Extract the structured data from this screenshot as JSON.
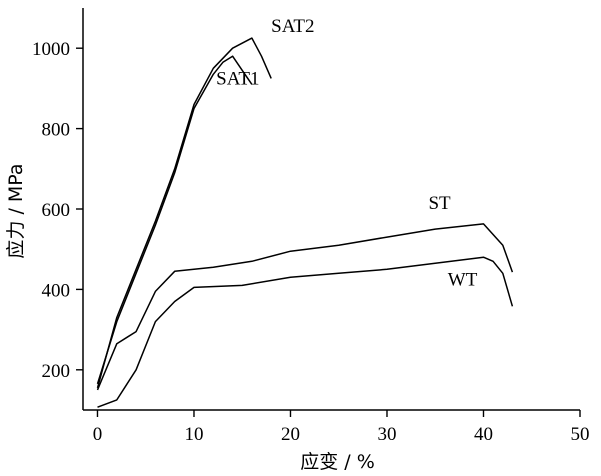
{
  "chart_data": {
    "type": "line",
    "xlabel": "应变 / %",
    "ylabel": "应力 / MPa",
    "xlim": [
      -1.5,
      50
    ],
    "ylim": [
      100,
      1100
    ],
    "xticks": [
      0,
      10,
      20,
      30,
      40,
      50
    ],
    "yticks": [
      200,
      400,
      600,
      800,
      1000
    ],
    "grid": false,
    "legend": "none (series labelled directly on the curves)",
    "series": [
      {
        "name": "SAT2",
        "x": [
          0,
          2,
          4,
          6,
          8,
          10,
          12,
          14,
          16,
          17,
          18
        ],
        "y": [
          155,
          330,
          450,
          570,
          700,
          860,
          950,
          1000,
          1025,
          980,
          925
        ]
      },
      {
        "name": "SAT1",
        "x": [
          0,
          2,
          4,
          6,
          8,
          10,
          12,
          13,
          14,
          15,
          16
        ],
        "y": [
          165,
          320,
          440,
          560,
          690,
          850,
          935,
          965,
          980,
          945,
          910
        ]
      },
      {
        "name": "ST",
        "x": [
          0,
          2,
          4,
          6,
          8,
          10,
          12,
          16,
          20,
          25,
          30,
          35,
          40,
          42,
          43
        ],
        "y": [
          150,
          265,
          295,
          395,
          445,
          450,
          455,
          470,
          495,
          510,
          530,
          550,
          563,
          510,
          443
        ]
      },
      {
        "name": "WT",
        "x": [
          0,
          2,
          4,
          6,
          8,
          10,
          15,
          20,
          25,
          30,
          35,
          40,
          41,
          42,
          43
        ],
        "y": [
          107,
          125,
          200,
          320,
          370,
          405,
          410,
          430,
          440,
          450,
          465,
          480,
          470,
          440,
          358
        ]
      }
    ],
    "series_labels": [
      {
        "text": "SAT2",
        "x": 18,
        "y": 1040
      },
      {
        "text": "SAT1",
        "x": 12.3,
        "y": 910
      },
      {
        "text": "ST",
        "x": 34.3,
        "y": 600
      },
      {
        "text": "WT",
        "x": 36.3,
        "y": 410
      }
    ]
  }
}
